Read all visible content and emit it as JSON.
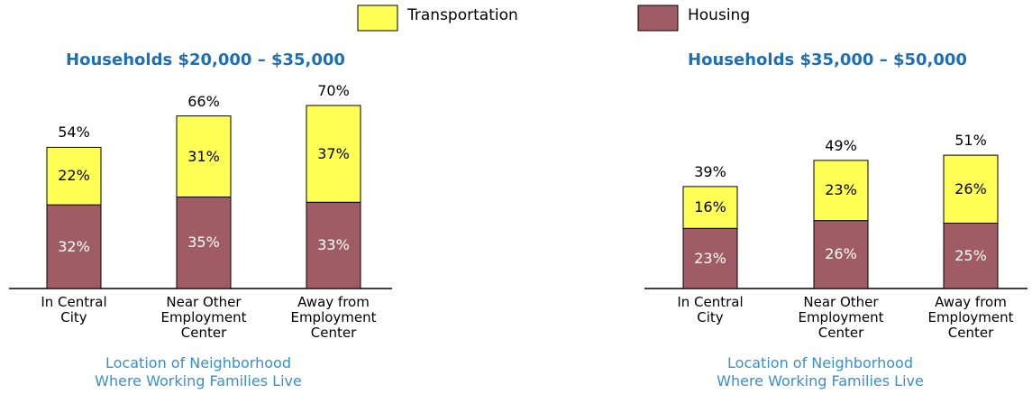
{
  "chart_data": [
    {
      "type": "stacked_bar",
      "title": "Households $20,000 – $35,000",
      "categories": [
        "In Central\nCity",
        "Near Other\nEmployment\nCenter",
        "Away from\nEmployment\nCenter"
      ],
      "series": [
        {
          "name": "Housing",
          "color": "#a05c64",
          "label_color": "#ffffff",
          "values": [
            32,
            35,
            33
          ],
          "value_labels": [
            "32%",
            "35%",
            "33%"
          ]
        },
        {
          "name": "Transportation",
          "color": "#ffff55",
          "label_color": "#000000",
          "values": [
            22,
            31,
            37
          ],
          "value_labels": [
            "22%",
            "31%",
            "37%"
          ]
        }
      ],
      "totals": [
        54,
        66,
        70
      ],
      "total_labels": [
        "54%",
        "66%",
        "70%"
      ],
      "x_label": [
        "Location of Neighborhood",
        "Where Working Families Live"
      ]
    },
    {
      "type": "stacked_bar",
      "title": "Households $35,000 – $50,000",
      "categories": [
        "In Central\nCity",
        "Near Other\nEmployment\nCenter",
        "Away from\nEmployment\nCenter"
      ],
      "series": [
        {
          "color": "#a05c64",
          "label_color": "#ffffff",
          "values": [
            23,
            26,
            25
          ],
          "value_labels": [
            "23%",
            "26%",
            "25%"
          ]
        },
        {
          "color": "#ffff55",
          "label_color": "#000000",
          "values": [
            16,
            23,
            26
          ],
          "value_labels": [
            "16%",
            "23%",
            "26%"
          ]
        }
      ],
      "totals": [
        39,
        49,
        51
      ],
      "total_labels": [
        "39%",
        "49%",
        "51%"
      ],
      "x_label": [
        "Location of Neighborhood",
        "Where Working Families Live"
      ]
    }
  ]
}
